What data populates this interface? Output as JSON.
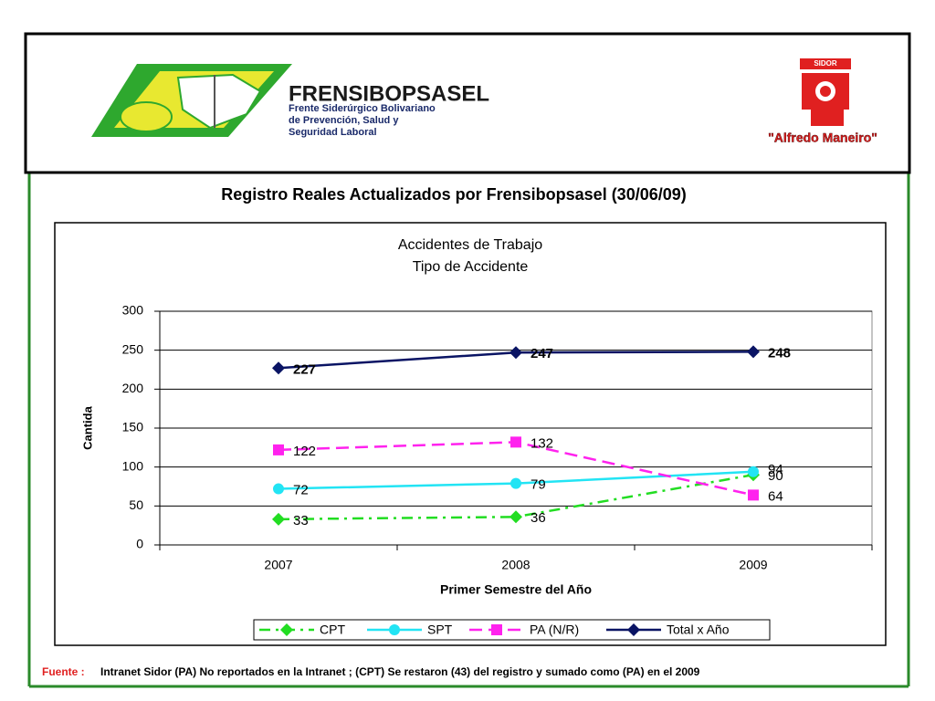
{
  "header": {
    "brand": "FRENSIBOPSASEL",
    "tagline": [
      "Frente Siderúrgico Bolivariano",
      "de Prevención, Salud y",
      "Seguridad Laboral"
    ],
    "logo_text": "SIDOR",
    "logo_caption": "\"Alfredo Maneiro\""
  },
  "slide_title": "Registro Reales Actualizados por Frensibopsasel (30/06/09)",
  "chart_data": {
    "type": "line",
    "title": "Accidentes de Trabajo",
    "subtitle": "Tipo de Accidente",
    "x_label": "Primer Semestre del Año",
    "y_label": "Cantida",
    "categories": [
      "2007",
      "2008",
      "2009"
    ],
    "ylim": [
      0,
      300
    ],
    "yticks": [
      0,
      50,
      100,
      150,
      200,
      250,
      300
    ],
    "grid": true,
    "legend": "bottom",
    "series": [
      {
        "name": "CPT",
        "color": "#22dd22",
        "marker": "diamond",
        "dash": "dash-dot",
        "values": [
          33,
          36,
          90
        ]
      },
      {
        "name": "SPT",
        "color": "#22e4f4",
        "marker": "circle",
        "dash": "solid",
        "values": [
          72,
          79,
          94
        ]
      },
      {
        "name": "PA (N/R)",
        "color": "#ff22ee",
        "marker": "square",
        "dash": "dash",
        "values": [
          122,
          132,
          64
        ]
      },
      {
        "name": "Total x Año",
        "color": "#0a1464",
        "marker": "diamond",
        "dash": "solid",
        "values": [
          227,
          247,
          248
        ]
      }
    ]
  },
  "source": {
    "label": "Fuente :",
    "text": "Intranet Sidor (PA) No reportados en la Intranet ; (CPT) Se restaron (43) del registro y sumado como (PA) en el 2009"
  }
}
